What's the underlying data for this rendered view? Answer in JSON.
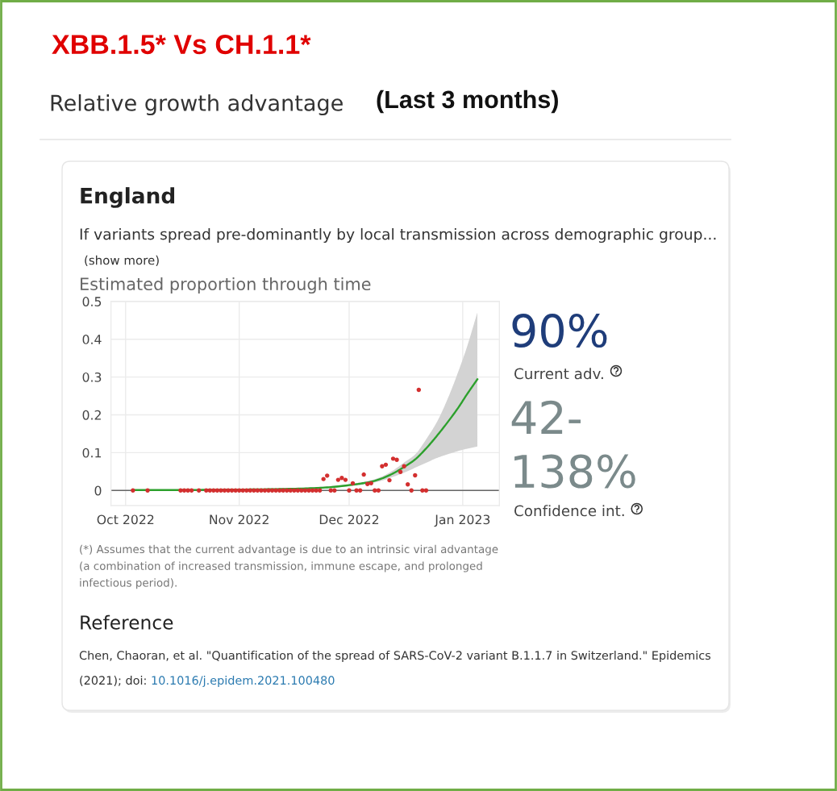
{
  "chart_data": {
    "type": "scatter",
    "title": "XBB.1.5* Vs CH.1.1*",
    "subtitle": "Relative growth advantage",
    "annotations": [
      "(Last 3 months)",
      "England",
      "If variants spread pre-dominantly by local transmission across demographic group...",
      "(show more)",
      "Estimated proportion through time",
      "90%",
      "Current adv.",
      "42-\n138%",
      "Confidence int.",
      "(*) Assumes that the current advantage is due to an intrinsic viral advantage\n(a combination of increased transmission, immune escape, and prolonged\ninfectious period).",
      "Reference",
      "Chen, Chaoran, et al. \"Quantification of the spread of SARS-CoV-2 variant B.1.1.7 in Switzerland.\" Epidemics",
      "(2021); doi:",
      "10.1016/j.epidem.2021.100480"
    ],
    "xlim": [
      "2022-09-27",
      "2023-01-11"
    ],
    "xticks": [
      {
        "value": "2022-10-01",
        "label": "Oct 2022"
      },
      {
        "value": "2022-11-01",
        "label": "Nov 2022"
      },
      {
        "value": "2022-12-01",
        "label": "Dec 2022"
      },
      {
        "value": "2023-01-01",
        "label": "Jan 2023"
      }
    ],
    "ylim": [
      -0.04,
      0.5
    ],
    "yticks": [
      0,
      0.1,
      0.2,
      0.3,
      0.4,
      0.5
    ],
    "grid": true,
    "ref_lines": [
      {
        "axis": "y",
        "value": 0,
        "color": "#666666"
      }
    ],
    "series": [
      {
        "type": "line",
        "color": "#2ca02c",
        "x": [
          "2022-10-03",
          "2022-10-15",
          "2022-10-27",
          "2022-11-08",
          "2022-11-18",
          "2022-11-25",
          "2022-12-01",
          "2022-12-04",
          "2022-12-07",
          "2022-12-10",
          "2022-12-13",
          "2022-12-16",
          "2022-12-19",
          "2022-12-22",
          "2022-12-25",
          "2022-12-28",
          "2022-12-31",
          "2023-01-02",
          "2023-01-05"
        ],
        "values": [
          0.001,
          0.001,
          0.002,
          0.003,
          0.005,
          0.008,
          0.014,
          0.018,
          0.023,
          0.032,
          0.045,
          0.062,
          0.082,
          0.111,
          0.145,
          0.182,
          0.222,
          0.252,
          0.294
        ],
        "lower": [
          0.0,
          0.0,
          0.001,
          0.002,
          0.004,
          0.006,
          0.011,
          0.014,
          0.019,
          0.026,
          0.036,
          0.047,
          0.06,
          0.073,
          0.086,
          0.096,
          0.105,
          0.11,
          0.116
        ],
        "upper": [
          0.002,
          0.002,
          0.003,
          0.005,
          0.007,
          0.011,
          0.016,
          0.021,
          0.027,
          0.037,
          0.053,
          0.074,
          0.095,
          0.135,
          0.182,
          0.245,
          0.32,
          0.375,
          0.471
        ]
      },
      {
        "color": "#d32f2f",
        "marker": "circle",
        "x": [
          "2022-10-03",
          "2022-10-07",
          "2022-10-16",
          "2022-10-17",
          "2022-10-18",
          "2022-10-19",
          "2022-10-21",
          "2022-10-23",
          "2022-10-24",
          "2022-10-25",
          "2022-10-26",
          "2022-10-27",
          "2022-10-28",
          "2022-10-29",
          "2022-10-30",
          "2022-10-31",
          "2022-11-01",
          "2022-11-02",
          "2022-11-03",
          "2022-11-04",
          "2022-11-05",
          "2022-11-06",
          "2022-11-07",
          "2022-11-08",
          "2022-11-09",
          "2022-11-10",
          "2022-11-11",
          "2022-11-12",
          "2022-11-13",
          "2022-11-14",
          "2022-11-15",
          "2022-11-16",
          "2022-11-17",
          "2022-11-18",
          "2022-11-19",
          "2022-11-20",
          "2022-11-21",
          "2022-11-22",
          "2022-11-23",
          "2022-11-24",
          "2022-11-25",
          "2022-11-26",
          "2022-11-27",
          "2022-11-28",
          "2022-11-29",
          "2022-11-30",
          "2022-12-01",
          "2022-12-02",
          "2022-12-03",
          "2022-12-04",
          "2022-12-05",
          "2022-12-06",
          "2022-12-07",
          "2022-12-08",
          "2022-12-09",
          "2022-12-10",
          "2022-12-11",
          "2022-12-12",
          "2022-12-13",
          "2022-12-14",
          "2022-12-15",
          "2022-12-16",
          "2022-12-17",
          "2022-12-18",
          "2022-12-19",
          "2022-12-20",
          "2022-12-21",
          "2022-12-22"
        ],
        "values": [
          0,
          0,
          0,
          0,
          0,
          0,
          0,
          0,
          0,
          0,
          0,
          0,
          0,
          0,
          0,
          0,
          0,
          0,
          0,
          0,
          0,
          0,
          0,
          0,
          0,
          0,
          0,
          0,
          0,
          0,
          0,
          0,
          0,
          0,
          0,
          0,
          0,
          0,
          0,
          0.03,
          0.039,
          0,
          0,
          0.028,
          0.033,
          0.028,
          0,
          0.019,
          0,
          0,
          0.042,
          0.017,
          0.019,
          0,
          0,
          0.064,
          0.068,
          0.027,
          0.084,
          0.081,
          0.049,
          0.064,
          0.016,
          0,
          0.04,
          0.266,
          0,
          0
        ]
      }
    ]
  }
}
